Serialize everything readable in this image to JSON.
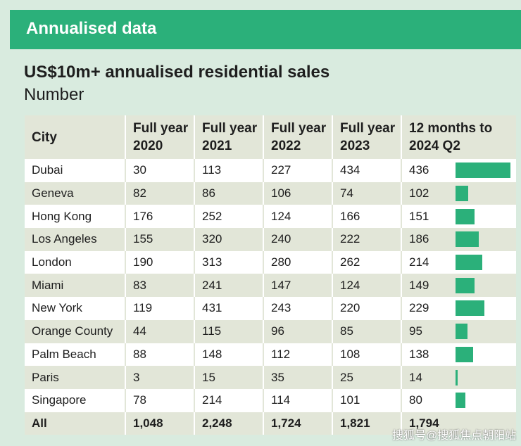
{
  "banner": "Annualised data",
  "title": "US$10m+ annualised residential sales",
  "subtitle": "Number",
  "watermark": "搜狐号@搜狐焦点朝阳站",
  "colors": {
    "banner": "#2bb07a",
    "bar": "#2bb07a",
    "background": "#d9ebdf",
    "row_alt": "#e2e6d8"
  },
  "chart_data": {
    "type": "table",
    "columns": [
      "City",
      "Full year 2020",
      "Full year 2021",
      "Full year 2022",
      "Full year 2023",
      "12 months to 2024 Q2"
    ],
    "rows": [
      {
        "city": "Dubai",
        "values": [
          "30",
          "113",
          "227",
          "434",
          "436"
        ],
        "bar": 436
      },
      {
        "city": "Geneva",
        "values": [
          "82",
          "86",
          "106",
          "74",
          "102"
        ],
        "bar": 102
      },
      {
        "city": "Hong Kong",
        "values": [
          "176",
          "252",
          "124",
          "166",
          "151"
        ],
        "bar": 151
      },
      {
        "city": "Los Angeles",
        "values": [
          "155",
          "320",
          "240",
          "222",
          "186"
        ],
        "bar": 186
      },
      {
        "city": "London",
        "values": [
          "190",
          "313",
          "280",
          "262",
          "214"
        ],
        "bar": 214
      },
      {
        "city": "Miami",
        "values": [
          "83",
          "241",
          "147",
          "124",
          "149"
        ],
        "bar": 149
      },
      {
        "city": "New York",
        "values": [
          "119",
          "431",
          "243",
          "220",
          "229"
        ],
        "bar": 229
      },
      {
        "city": "Orange County",
        "values": [
          "44",
          "115",
          "96",
          "85",
          "95"
        ],
        "bar": 95
      },
      {
        "city": "Palm Beach",
        "values": [
          "88",
          "148",
          "112",
          "108",
          "138"
        ],
        "bar": 138
      },
      {
        "city": "Paris",
        "values": [
          "3",
          "15",
          "35",
          "25",
          "14"
        ],
        "bar": 14
      },
      {
        "city": "Singapore",
        "values": [
          "78",
          "214",
          "114",
          "101",
          "80"
        ],
        "bar": 80
      }
    ],
    "total": {
      "city": "All",
      "values": [
        "1,048",
        "2,248",
        "1,724",
        "1,821",
        "1,794"
      ]
    },
    "bar_max": 436
  }
}
